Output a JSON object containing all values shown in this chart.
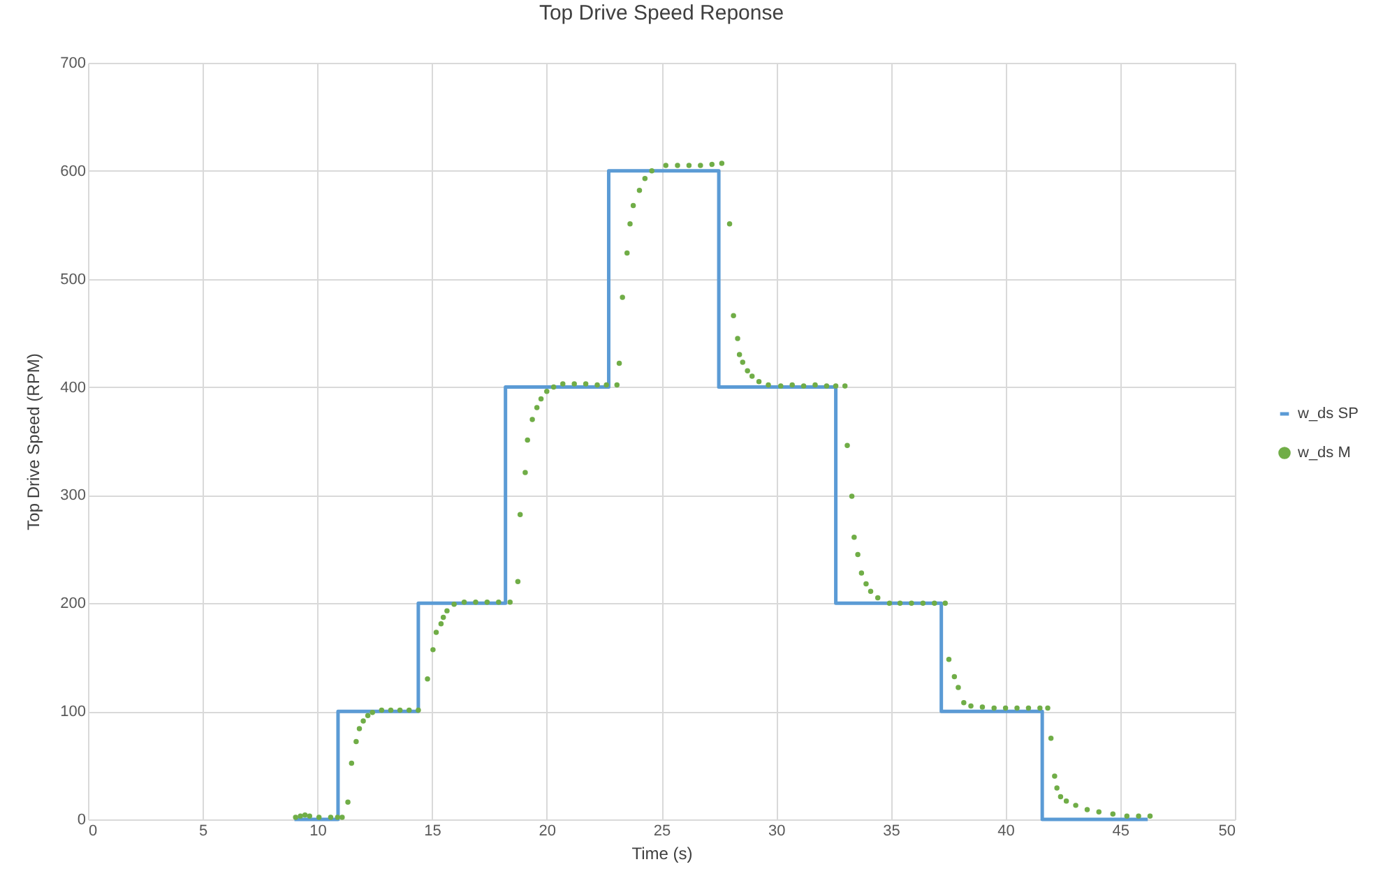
{
  "chart_data": {
    "type": "step",
    "title": "Top Drive Speed Reponse",
    "xlabel": "Time (s)",
    "ylabel": "Top Drive Speed (RPM)",
    "xlim": [
      0,
      50
    ],
    "xticks": [
      0,
      5,
      10,
      15,
      20,
      25,
      30,
      35,
      40,
      45,
      50
    ],
    "ylim": [
      0,
      700
    ],
    "yticks": [
      0,
      100,
      200,
      300,
      400,
      500,
      600,
      700
    ],
    "grid": true,
    "legend": "right",
    "series": [
      {
        "name": "w_ds SP",
        "type": "step",
        "color": "#5b9bd5",
        "x": [
          9.0,
          10.9,
          14.4,
          18.2,
          22.7,
          27.5,
          32.6,
          37.2,
          41.6,
          46.2
        ],
        "values": [
          0,
          100,
          200,
          400,
          600,
          400,
          200,
          100,
          0,
          0
        ]
      },
      {
        "name": "w_ds M",
        "type": "scatter",
        "color": "#70ad47",
        "x": [
          9.05,
          9.26,
          9.46,
          9.66,
          10.07,
          10.58,
          10.88,
          11.08,
          11.33,
          11.49,
          11.69,
          11.83,
          12.0,
          12.2,
          12.4,
          12.8,
          13.2,
          13.6,
          14.0,
          14.4,
          14.8,
          15.04,
          15.18,
          15.39,
          15.49,
          15.65,
          15.96,
          16.4,
          16.9,
          17.4,
          17.9,
          18.4,
          18.74,
          18.84,
          19.06,
          19.16,
          19.37,
          19.57,
          19.75,
          20.0,
          20.3,
          20.7,
          21.2,
          21.7,
          22.2,
          22.6,
          23.06,
          23.16,
          23.3,
          23.5,
          23.63,
          23.77,
          24.04,
          24.28,
          24.58,
          25.19,
          25.7,
          26.2,
          26.7,
          27.2,
          27.63,
          27.97,
          28.14,
          28.32,
          28.4,
          28.54,
          28.75,
          28.95,
          29.25,
          29.66,
          30.2,
          30.7,
          31.2,
          31.7,
          32.2,
          32.6,
          33.0,
          33.1,
          33.3,
          33.4,
          33.56,
          33.72,
          33.92,
          34.12,
          34.43,
          34.94,
          35.4,
          35.9,
          36.4,
          36.9,
          37.37,
          37.53,
          37.77,
          37.94,
          38.18,
          38.49,
          38.99,
          39.5,
          40.0,
          40.5,
          41.0,
          41.5,
          41.84,
          41.98,
          42.14,
          42.24,
          42.4,
          42.65,
          43.06,
          43.56,
          44.07,
          44.68,
          45.29,
          45.8,
          46.3
        ],
        "values": [
          2,
          3,
          4,
          3,
          2,
          2,
          2,
          2,
          16,
          52,
          72,
          84,
          91,
          96,
          99,
          101,
          101,
          101,
          101,
          101,
          130,
          157,
          173,
          181,
          187,
          193,
          199,
          201,
          201,
          201,
          201,
          201,
          220,
          282,
          321,
          351,
          370,
          381,
          389,
          396,
          400,
          403,
          403,
          403,
          402,
          402,
          402,
          422,
          483,
          524,
          551,
          568,
          582,
          593,
          600,
          605,
          605,
          605,
          605,
          606,
          607,
          551,
          466,
          445,
          430,
          423,
          415,
          410,
          405,
          402,
          401,
          402,
          401,
          402,
          401,
          401,
          401,
          346,
          299,
          261,
          245,
          228,
          218,
          211,
          205,
          200,
          200,
          200,
          200,
          200,
          200,
          148,
          132,
          122,
          108,
          105,
          104,
          103,
          103,
          103,
          103,
          103,
          103,
          75,
          40,
          29,
          21,
          17,
          13,
          9,
          7,
          5,
          3,
          3,
          3
        ]
      }
    ]
  }
}
